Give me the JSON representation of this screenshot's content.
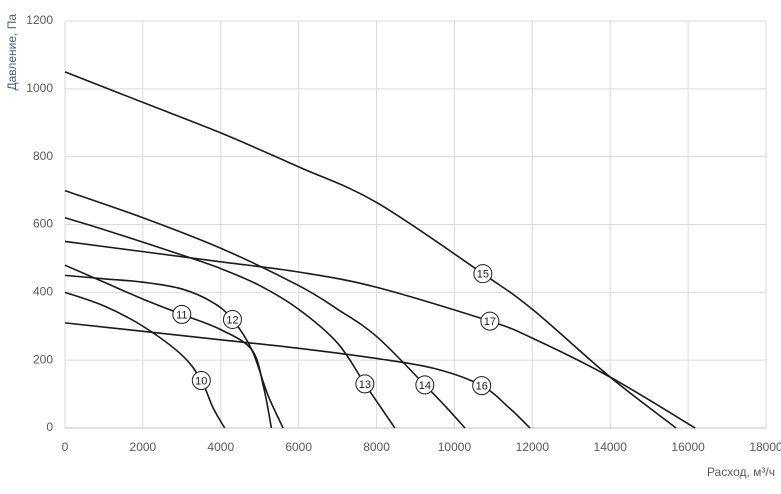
{
  "chart_data": {
    "type": "line",
    "x_label": "Расход, м³/ч",
    "y_label": "Давление, Па",
    "xlim": [
      0,
      18000
    ],
    "xticks": [
      0,
      2000,
      4000,
      6000,
      8000,
      10000,
      12000,
      14000,
      16000,
      18000
    ],
    "ylim": [
      0,
      1200
    ],
    "yticks": [
      0,
      200,
      400,
      600,
      800,
      1000,
      1200
    ],
    "grid": true,
    "series": [
      {
        "name": "10",
        "color": "#1a1a1a",
        "x": [
          0,
          1000,
          2000,
          3000,
          3500,
          3800,
          4100
        ],
        "values": [
          400,
          360,
          300,
          215,
          140,
          60,
          0
        ]
      },
      {
        "name": "11",
        "color": "#1a1a1a",
        "x": [
          0,
          1000,
          2000,
          3000,
          4000,
          4800,
          5100,
          5300
        ],
        "values": [
          480,
          430,
          380,
          335,
          290,
          230,
          120,
          0
        ]
      },
      {
        "name": "12",
        "color": "#1a1a1a",
        "x": [
          0,
          1000,
          2000,
          3000,
          3800,
          4300,
          4800,
          5200,
          5600
        ],
        "values": [
          450,
          440,
          430,
          410,
          370,
          320,
          230,
          100,
          0
        ]
      },
      {
        "name": "13",
        "color": "#1a1a1a",
        "x": [
          0,
          1000,
          2000,
          3000,
          4000,
          5000,
          6000,
          7000,
          7700,
          8470
        ],
        "values": [
          620,
          585,
          548,
          510,
          470,
          420,
          350,
          250,
          130,
          0
        ]
      },
      {
        "name": "14",
        "color": "#1a1a1a",
        "x": [
          0,
          2000,
          4000,
          6000,
          7000,
          8000,
          9240,
          9800,
          10270
        ],
        "values": [
          700,
          620,
          530,
          420,
          350,
          270,
          127,
          60,
          0
        ]
      },
      {
        "name": "15",
        "color": "#1a1a1a",
        "x": [
          0,
          2000,
          4000,
          6000,
          8000,
          10730,
          12000,
          14000,
          15690
        ],
        "values": [
          1050,
          960,
          870,
          770,
          665,
          455,
          350,
          150,
          0
        ]
      },
      {
        "name": "16",
        "color": "#1a1a1a",
        "x": [
          0,
          2000,
          4000,
          6000,
          8000,
          9500,
          10700,
          11400,
          11940
        ],
        "values": [
          310,
          285,
          260,
          235,
          205,
          175,
          125,
          60,
          0
        ]
      },
      {
        "name": "17",
        "color": "#1a1a1a",
        "x": [
          0,
          2000,
          4000,
          6000,
          8000,
          10910,
          12000,
          14000,
          16180
        ],
        "values": [
          550,
          520,
          490,
          460,
          415,
          315,
          265,
          150,
          0
        ]
      }
    ]
  }
}
